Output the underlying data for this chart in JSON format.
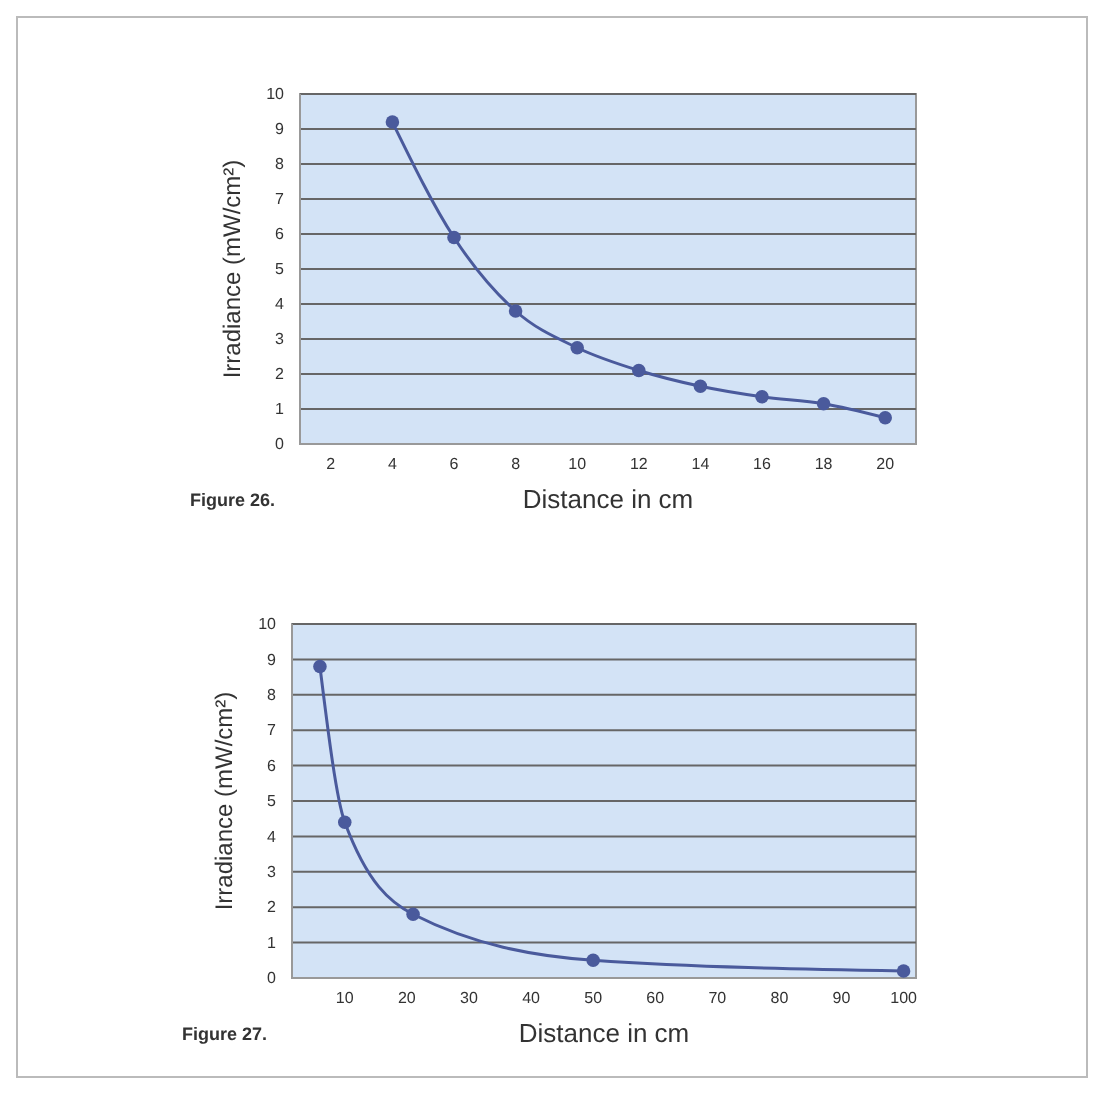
{
  "chart_data": [
    {
      "type": "line",
      "xlabel": "Distance in cm",
      "ylabel": "Irradiance (mW/cm²)",
      "annotations": [
        "Figure 26."
      ],
      "x": [
        4,
        6,
        8,
        10,
        12,
        14,
        16,
        18,
        20
      ],
      "series": [
        {
          "color": "#4a5a9c",
          "values": [
            9.2,
            5.9,
            3.8,
            2.75,
            2.1,
            1.65,
            1.35,
            1.15,
            0.75
          ]
        }
      ],
      "xlim": [
        1,
        21
      ],
      "xticks": [
        2,
        4,
        6,
        8,
        10,
        12,
        14,
        16,
        18,
        20
      ],
      "ylim": [
        0,
        10
      ],
      "yticks": [
        0,
        1,
        2,
        3,
        4,
        5,
        6,
        7,
        8,
        9,
        10
      ],
      "grid": "y",
      "marker": "circle",
      "line_style": "solid"
    },
    {
      "type": "line",
      "xlabel": "Distance in cm",
      "ylabel": "Irradiance (mW/cm²)",
      "annotations": [
        "Figure 27."
      ],
      "x": [
        6,
        10,
        21,
        50,
        100
      ],
      "series": [
        {
          "color": "#4a5a9c",
          "values": [
            8.8,
            4.4,
            1.8,
            0.5,
            0.2
          ]
        }
      ],
      "xlim": [
        1.5,
        102
      ],
      "xticks": [
        10,
        20,
        30,
        40,
        50,
        60,
        70,
        80,
        90,
        100
      ],
      "ylim": [
        0,
        10
      ],
      "yticks": [
        0,
        1,
        2,
        3,
        4,
        5,
        6,
        7,
        8,
        9,
        10
      ],
      "grid": "y",
      "marker": "circle",
      "line_style": "solid"
    }
  ]
}
